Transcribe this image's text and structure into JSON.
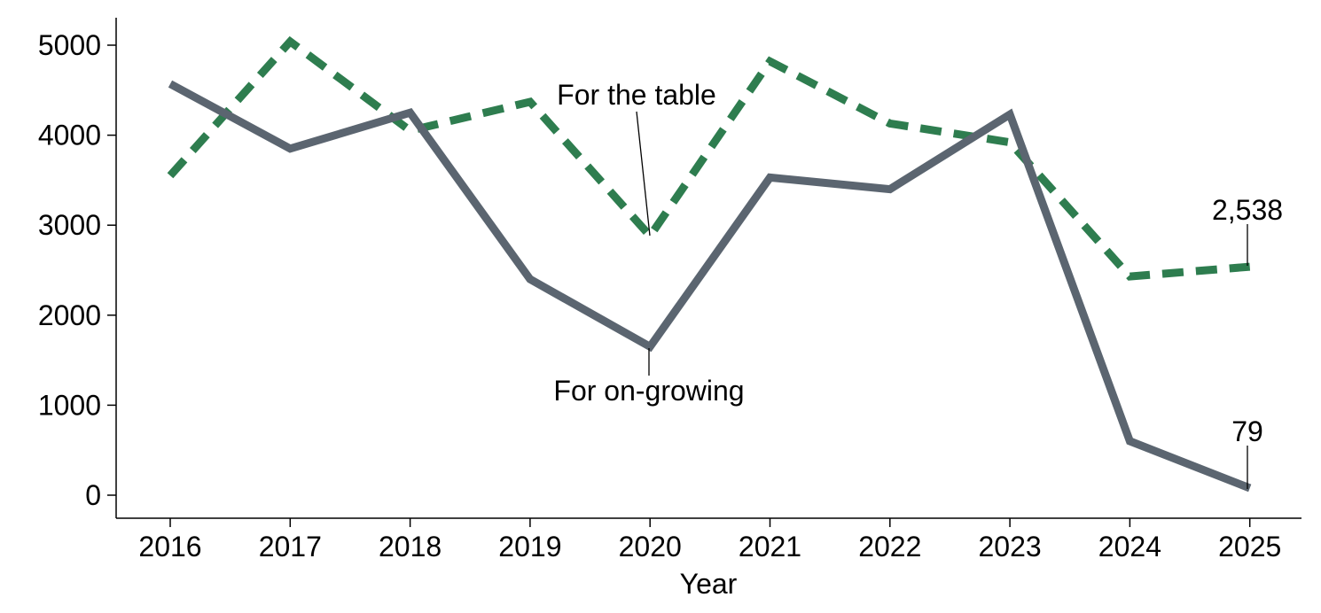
{
  "chart_data": {
    "type": "line",
    "title": "",
    "xlabel": "Year",
    "ylabel": "",
    "x": [
      "2016",
      "2017",
      "2018",
      "2019",
      "2020",
      "2021",
      "2022",
      "2023",
      "2024",
      "2025"
    ],
    "ylim": [
      -250,
      5300
    ],
    "yticks": [
      0,
      1000,
      2000,
      3000,
      4000,
      5000
    ],
    "ytick_labels": [
      "0",
      "1000",
      "2000",
      "3000",
      "4000",
      "5000"
    ],
    "grid": false,
    "legend": "none (series labelled directly on the lines)",
    "series": [
      {
        "name": "For on-growing",
        "values": [
          4570,
          3850,
          4250,
          2400,
          1650,
          3530,
          3400,
          4230,
          600,
          79
        ],
        "color": "#5b6570",
        "style": "solid"
      },
      {
        "name": "For the table",
        "values": [
          3550,
          5040,
          4050,
          4370,
          2880,
          4820,
          4130,
          3920,
          2430,
          2538
        ],
        "color": "#2e7d4f",
        "style": "dashed"
      }
    ],
    "annotations": [
      {
        "text": "For the table",
        "series": 1,
        "index": 4
      },
      {
        "text": "For on-growing",
        "series": 0,
        "index": 4
      },
      {
        "text": "2,538",
        "series": 1,
        "index": 9
      },
      {
        "text": "79",
        "series": 0,
        "index": 9
      }
    ]
  }
}
